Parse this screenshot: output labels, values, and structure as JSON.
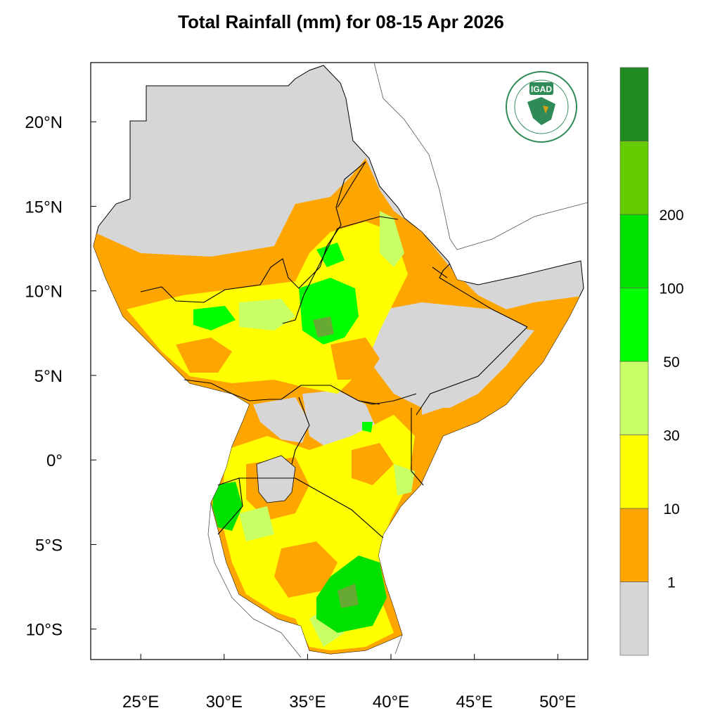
{
  "title": "Total Rainfall (mm) for 08-15 Apr 2026",
  "logo": {
    "abbr": "IGAD",
    "ring_text_top": "INTERGOVERNMENTAL AUTHORITY ON DEVELOPMENT",
    "ring_text_bottom": "AUTORITE INTERGOUVERNEMENTALE POUR LE DEVELOPPEMENT"
  },
  "map": {
    "lon_range": [
      22,
      51.8
    ],
    "lat_range": [
      -11.8,
      23.5
    ],
    "lon_ticks": [
      {
        "value": 25,
        "label": "25°E"
      },
      {
        "value": 30,
        "label": "30°E"
      },
      {
        "value": 35,
        "label": "35°E"
      },
      {
        "value": 40,
        "label": "40°E"
      },
      {
        "value": 45,
        "label": "45°E"
      },
      {
        "value": 50,
        "label": "50°E"
      }
    ],
    "lat_ticks": [
      {
        "value": 20,
        "label": "20°N"
      },
      {
        "value": 15,
        "label": "15°N"
      },
      {
        "value": 10,
        "label": "10°N"
      },
      {
        "value": 5,
        "label": "5°N"
      },
      {
        "value": 0,
        "label": "0°"
      },
      {
        "value": -5,
        "label": "5°S"
      },
      {
        "value": -10,
        "label": "10°S"
      }
    ]
  },
  "colorbar": {
    "colors": [
      "#d6d6d6",
      "#ffa500",
      "#ffff00",
      "#c8ff64",
      "#00ff00",
      "#00e100",
      "#66cc00",
      "#228b22"
    ],
    "labels": [
      "1",
      "10",
      "30",
      "50",
      "100",
      "200"
    ]
  },
  "colors": {
    "land_dry": "#d6d6d6",
    "border": "#000000",
    "outer_coast": "#555555"
  }
}
